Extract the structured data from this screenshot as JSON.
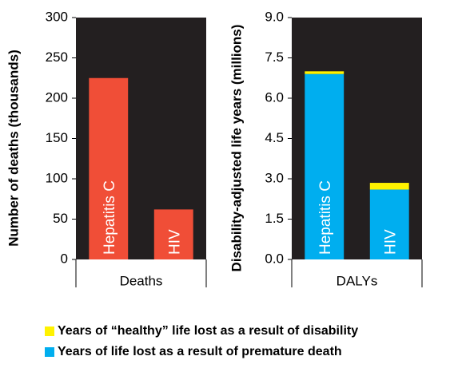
{
  "chart_data": [
    {
      "type": "bar",
      "ylabel": "Number of deaths (thousands)",
      "xlabel": "Deaths",
      "categories": [
        "Hepatitis C",
        "HIV"
      ],
      "values": [
        225,
        62
      ],
      "color": "#f04e37",
      "ylim": [
        0,
        300
      ],
      "yticks": [
        0,
        50,
        100,
        150,
        200,
        250,
        300
      ]
    },
    {
      "type": "stacked_bar",
      "ylabel": "Disability-adjusted life years (millions)",
      "xlabel": "DALYs",
      "categories": [
        "Hepatitis C",
        "HIV"
      ],
      "series": [
        {
          "name": "Years of life lost as a result of premature death",
          "color": "#00aeef",
          "values": [
            6.9,
            2.6
          ]
        },
        {
          "name": "Years of “healthy” life lost as a result of disability",
          "color": "#fff200",
          "values": [
            0.1,
            0.25
          ]
        }
      ],
      "ylim": [
        0,
        9
      ],
      "yticks": [
        {
          "value": 0,
          "label": "0.0"
        },
        1.5,
        {
          "value": 3,
          "label": "3.0"
        },
        4.5,
        {
          "value": 6,
          "label": "6.0"
        },
        7.5,
        {
          "value": 9,
          "label": "9.0"
        }
      ]
    }
  ]
}
